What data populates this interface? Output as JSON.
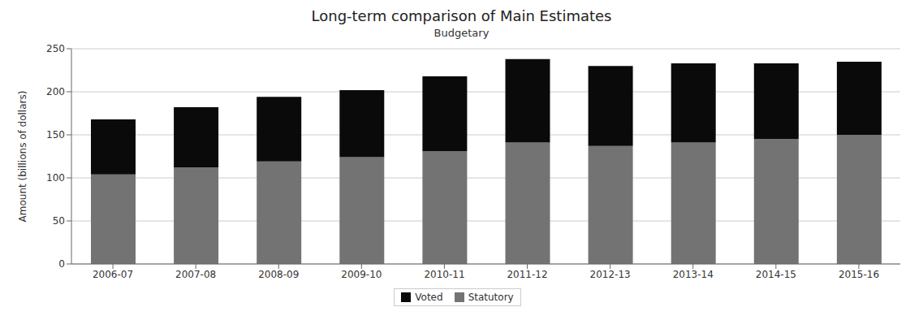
{
  "chart_data": {
    "type": "bar",
    "title": "Long-term comparison of Main Estimates",
    "subtitle": "Budgetary",
    "ylabel": "Amount (billions of dollars)",
    "categories": [
      "2006-07",
      "2007-08",
      "2008-09",
      "2009-10",
      "2010-11",
      "2011-12",
      "2012-13",
      "2013-14",
      "2014-15",
      "2015-16"
    ],
    "series": [
      {
        "name": "Statutory",
        "color": "#737373",
        "values": [
          104,
          112,
          119,
          124,
          131,
          141,
          137,
          141,
          145,
          150
        ]
      },
      {
        "name": "Voted",
        "color": "#0a0a0a",
        "values": [
          64,
          70,
          75,
          78,
          87,
          97,
          93,
          92,
          88,
          85
        ]
      }
    ],
    "stacked": true,
    "ylim": [
      0,
      250
    ],
    "yticks": [
      0,
      50,
      100,
      150,
      200,
      250
    ],
    "grid": true,
    "legend": "bottom"
  }
}
